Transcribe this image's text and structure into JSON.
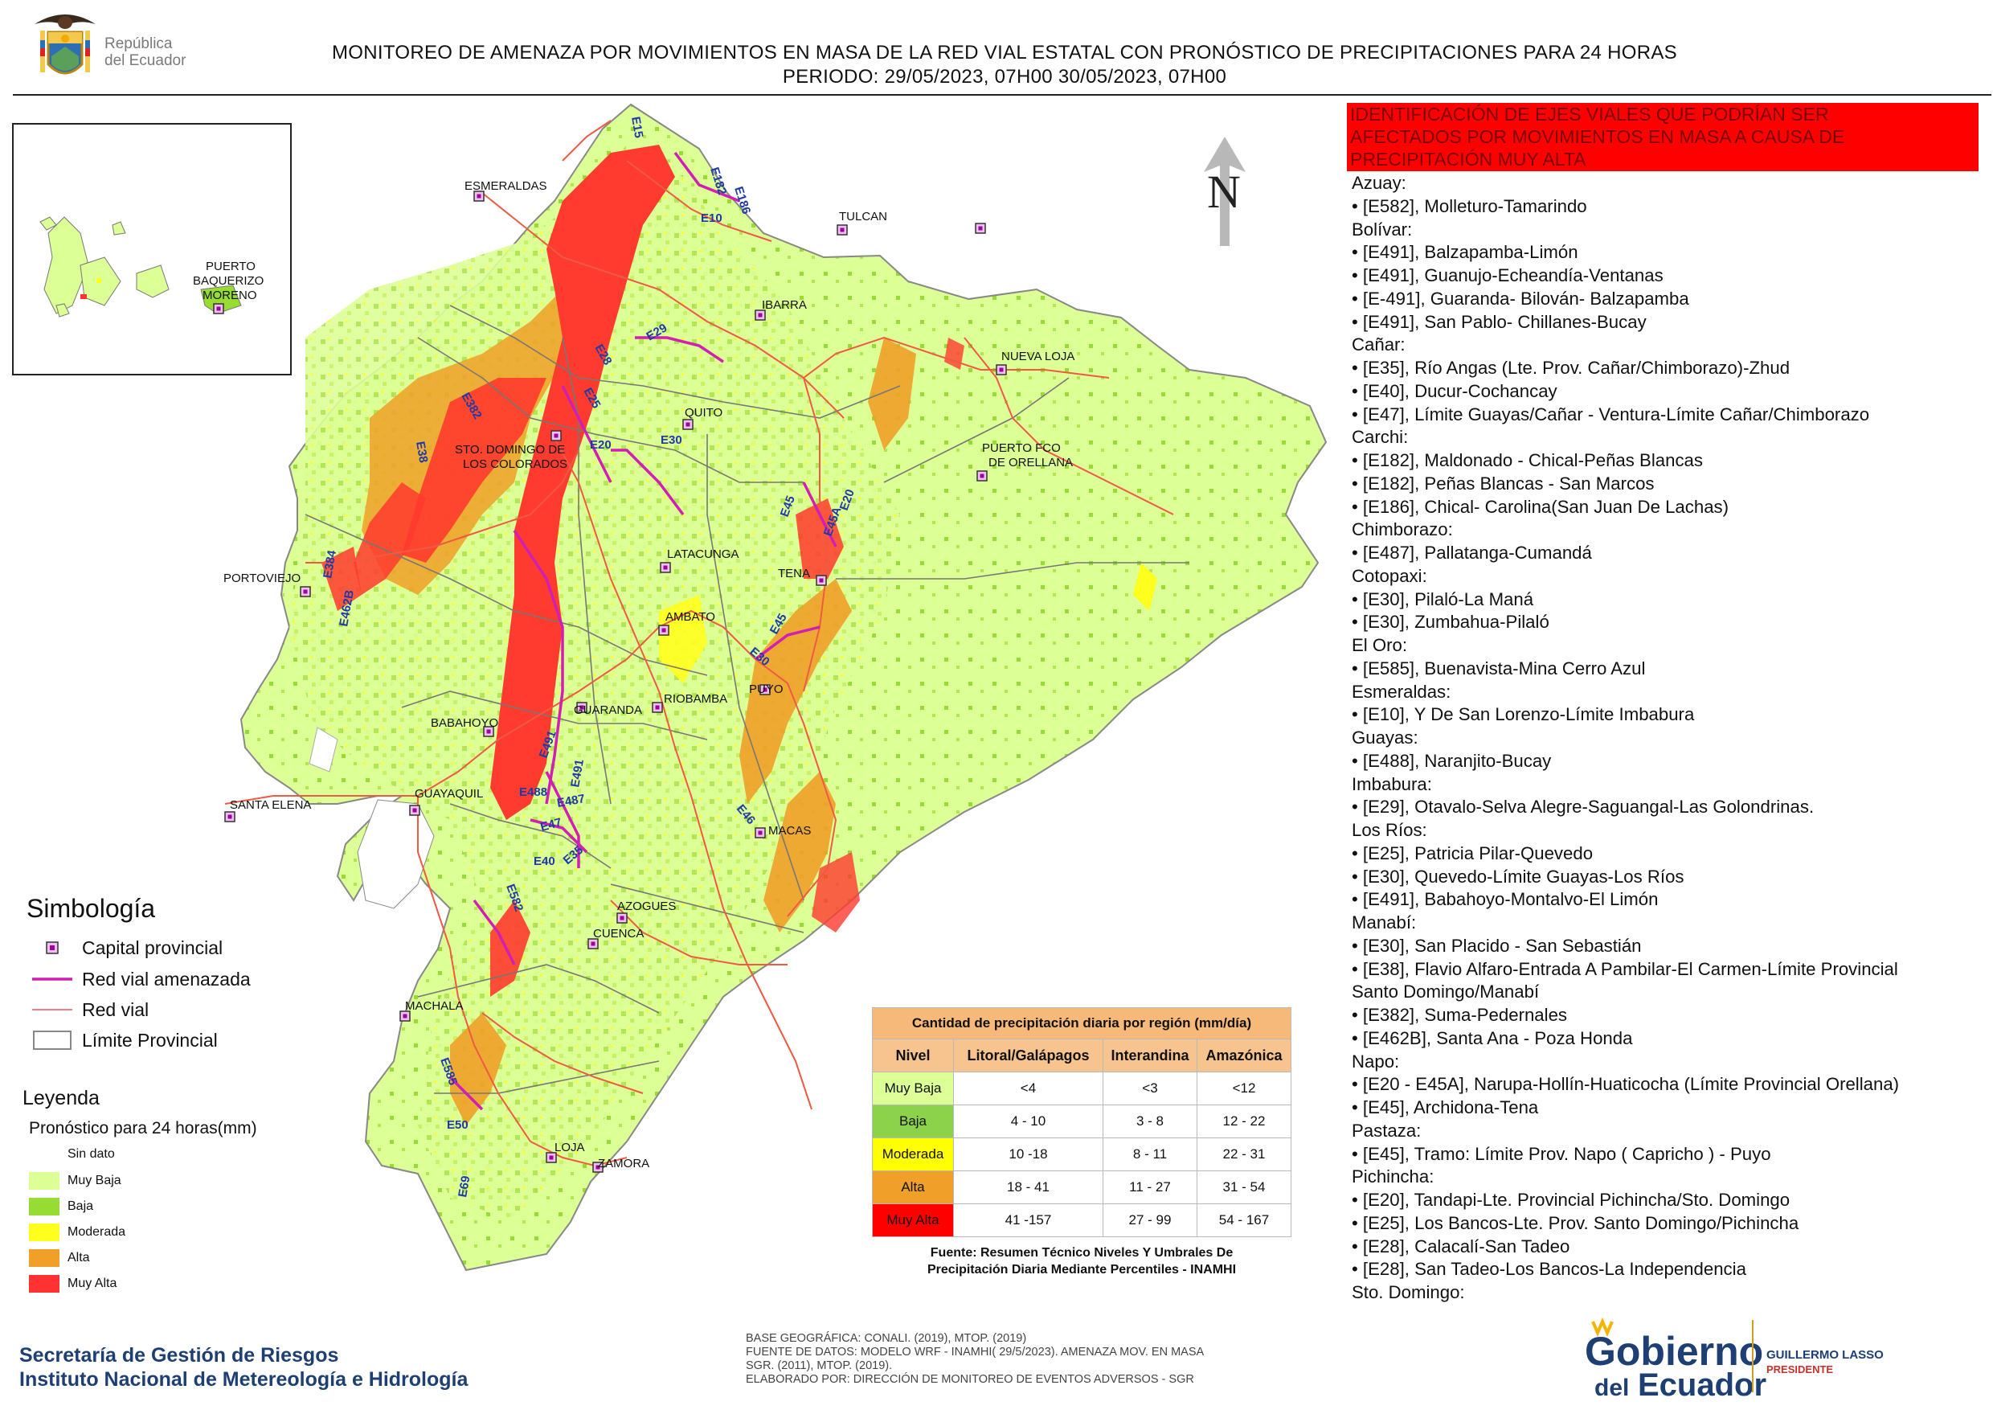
{
  "header": {
    "republic_name_line1": "República",
    "republic_name_line2": "del Ecuador",
    "title_line1": "MONITOREO DE AMENAZA POR MOVIMIENTOS EN MASA DE LA RED VIAL  ESTATAL  CON PRONÓSTICO  DE  PRECIPITACIONES PARA 24 HORAS",
    "title_line2": "PERIODO: 29/05/2023, 07H00 30/05/2023, 07H00"
  },
  "map": {
    "north_label": "N",
    "cities": [
      {
        "name": "ESMERALDAS"
      },
      {
        "name": "TULCAN"
      },
      {
        "name": "IBARRA"
      },
      {
        "name": "NUEVA LOJA"
      },
      {
        "name": "QUITO"
      },
      {
        "name": "STO. DOMINGO DE"
      },
      {
        "name": "LOS COLORADOS"
      },
      {
        "name": "PUERTO FCO"
      },
      {
        "name": "DE ORELLANA"
      },
      {
        "name": "PORTOVIEJO"
      },
      {
        "name": "LATACUNGA"
      },
      {
        "name": "TENA"
      },
      {
        "name": "AMBATO"
      },
      {
        "name": "GUARANDA"
      },
      {
        "name": "RIOBAMBA"
      },
      {
        "name": "PUYO"
      },
      {
        "name": "BABAHOYO"
      },
      {
        "name": "SANTA ELENA"
      },
      {
        "name": "GUAYAQUIL"
      },
      {
        "name": "MACAS"
      },
      {
        "name": "AZOGUES"
      },
      {
        "name": "CUENCA"
      },
      {
        "name": "MACHALA"
      },
      {
        "name": "LOJA"
      },
      {
        "name": "ZAMORA"
      }
    ],
    "inset_cities": [
      {
        "name": "PUERTO"
      },
      {
        "name": "BAQUERIZO"
      },
      {
        "name": "MORENO"
      }
    ],
    "roads": [
      "E15",
      "E182",
      "E186",
      "E10",
      "E29",
      "E28",
      "E25",
      "E382",
      "E20",
      "E30",
      "E38",
      "E384",
      "E462B",
      "E45",
      "E20",
      "E45A",
      "E45",
      "E30",
      "E491",
      "E491",
      "E488",
      "E487",
      "E47",
      "E40",
      "E35",
      "E46",
      "E582",
      "E585",
      "E50",
      "E69",
      "E28",
      "E30"
    ]
  },
  "symbology": {
    "title": "Simbología",
    "items": [
      {
        "label": "Capital provincial",
        "icon": "capital-icon"
      },
      {
        "label": "Red vial amenazada",
        "color": "#d11fb4"
      },
      {
        "label": "Red vial",
        "color": "#f08080"
      },
      {
        "label": "Límite Provincial",
        "color": "#888888"
      }
    ]
  },
  "legend": {
    "title": "Leyenda",
    "subtitle": "Pronóstico para 24 horas(mm)",
    "items": [
      {
        "label": "Sin dato",
        "color": "#ffffff"
      },
      {
        "label": "Muy Baja",
        "color": "#dcff96"
      },
      {
        "label": "Baja",
        "color": "#96dc32"
      },
      {
        "label": "Moderada",
        "color": "#ffff1e"
      },
      {
        "label": "Alta",
        "color": "#f0a028"
      },
      {
        "label": "Muy Alta",
        "color": "#ff3232"
      }
    ]
  },
  "precip_table": {
    "caption": "Cantidad de precipitación diaria por región (mm/día)",
    "headers": [
      "Nivel",
      "Litoral/Galápagos",
      "Interandina",
      "Amazónica"
    ],
    "rows": [
      {
        "level": "Muy Baja",
        "color": "#dcff96",
        "litoral": "<4",
        "interandina": "<3",
        "amazonica": "<12"
      },
      {
        "level": "Baja",
        "color": "#8cd24b",
        "litoral": "4 - 10",
        "interandina": "3 - 8",
        "amazonica": "12 - 22"
      },
      {
        "level": "Moderada",
        "color": "#ffff00",
        "litoral": "10 -18",
        "interandina": "8 - 11",
        "amazonica": "22 - 31"
      },
      {
        "level": "Alta",
        "color": "#f0a028",
        "litoral": "18 - 41",
        "interandina": "11 - 27",
        "amazonica": "31 - 54"
      },
      {
        "level": "Muy Alta",
        "color": "#ff0000",
        "litoral": "41 -157",
        "interandina": "27 - 99",
        "amazonica": "54 - 167"
      }
    ],
    "source_line1": "Fuente: Resumen Técnico Niveles Y Umbrales De",
    "source_line2": "Precipitación Diaria Mediante Percentiles - INAMHI"
  },
  "credits": {
    "line1": "BASE GEOGRÁFICA: CONALI. (2019), MTOP. (2019)",
    "line2": "FUENTE DE DATOS: MODELO WRF - INAMHI( 29/5/2023).  AMENAZA MOV. EN MASA",
    "line3": "SGR. (2011), MTOP. (2019).",
    "line4": "ELABORADO POR: DIRECCIÓN DE MONITOREO DE EVENTOS ADVERSOS - SGR"
  },
  "institutions": {
    "line1": "Secretaría de Gestión de Riesgos",
    "line2": "Instituto Nacional de Metereología e Hidrología"
  },
  "alert": {
    "line1": "IDENTIFICACIÓN DE EJES VIALES QUE PODRÍAN SER",
    "line2": "AFECTADOS POR MOVIMIENTOS EN MASA A CAUSA DE",
    "line3": "PRECIPITACIÓN MUY ALTA"
  },
  "road_list": [
    {
      "type": "province",
      "text": "Azuay:"
    },
    {
      "type": "item",
      "text": "• [E582], Molleturo-Tamarindo"
    },
    {
      "type": "province",
      "text": "Bolívar:"
    },
    {
      "type": "item",
      "text": "• [E491], Balzapamba-Limón"
    },
    {
      "type": "item",
      "text": "• [E491], Guanujo-Echeandía-Ventanas"
    },
    {
      "type": "item",
      "text": "• [E-491], Guaranda- Bilován- Balzapamba"
    },
    {
      "type": "item",
      "text": "• [E491], San Pablo- Chillanes-Bucay"
    },
    {
      "type": "province",
      "text": "Cañar:"
    },
    {
      "type": "item",
      "text": "• [E35], Río Angas (Lte. Prov. Cañar/Chimborazo)-Zhud"
    },
    {
      "type": "item",
      "text": "• [E40], Ducur-Cochancay"
    },
    {
      "type": "item",
      "text": "• [E47], Límite Guayas/Cañar - Ventura-Límite Cañar/Chimborazo"
    },
    {
      "type": "province",
      "text": "Carchi:"
    },
    {
      "type": "item",
      "text": "• [E182], Maldonado - Chical-Peñas Blancas"
    },
    {
      "type": "item",
      "text": "• [E182], Peñas Blancas - San Marcos"
    },
    {
      "type": "item",
      "text": "• [E186], Chical- Carolina(San Juan De Lachas)"
    },
    {
      "type": "province",
      "text": "Chimborazo:"
    },
    {
      "type": "item",
      "text": "• [E487], Pallatanga-Cumandá"
    },
    {
      "type": "province",
      "text": "Cotopaxi:"
    },
    {
      "type": "item",
      "text": "• [E30], Pilaló-La Maná"
    },
    {
      "type": "item",
      "text": "• [E30], Zumbahua-Pilaló"
    },
    {
      "type": "province",
      "text": "El Oro:"
    },
    {
      "type": "item",
      "text": "• [E585], Buenavista-Mina Cerro Azul"
    },
    {
      "type": "province",
      "text": "Esmeraldas:"
    },
    {
      "type": "item",
      "text": "• [E10], Y De San Lorenzo-Límite Imbabura"
    },
    {
      "type": "province",
      "text": "Guayas:"
    },
    {
      "type": "item",
      "text": "• [E488], Naranjito-Bucay"
    },
    {
      "type": "province",
      "text": "Imbabura:"
    },
    {
      "type": "item",
      "text": "• [E29], Otavalo-Selva Alegre-Saguangal-Las Golondrinas."
    },
    {
      "type": "province",
      "text": "Los Ríos:"
    },
    {
      "type": "item",
      "text": "• [E25], Patricia Pilar-Quevedo"
    },
    {
      "type": "item",
      "text": "• [E30], Quevedo-Límite Guayas-Los Ríos"
    },
    {
      "type": "item",
      "text": "• [E491], Babahoyo-Montalvo-El Limón"
    },
    {
      "type": "province",
      "text": "Manabí:"
    },
    {
      "type": "item",
      "text": "• [E30], San Placido - San Sebastián"
    },
    {
      "type": "item",
      "text": "• [E38], Flavio Alfaro-Entrada A Pambilar-El Carmen-Límite Provincial"
    },
    {
      "type": "province",
      "text": "Santo Domingo/Manabí"
    },
    {
      "type": "item",
      "text": "• [E382], Suma-Pedernales"
    },
    {
      "type": "item",
      "text": "• [E462B], Santa Ana - Poza Honda"
    },
    {
      "type": "province",
      "text": "Napo:"
    },
    {
      "type": "item",
      "text": "• [E20 - E45A], Narupa-Hollín-Huaticocha (Límite Provincial Orellana)"
    },
    {
      "type": "item",
      "text": "• [E45], Archidona-Tena"
    },
    {
      "type": "province",
      "text": "Pastaza:"
    },
    {
      "type": "item",
      "text": "• [E45], Tramo: Límite Prov. Napo ( Capricho ) - Puyo"
    },
    {
      "type": "province",
      "text": "Pichincha:"
    },
    {
      "type": "item",
      "text": "• [E20], Tandapi-Lte. Provincial Pichincha/Sto. Domingo"
    },
    {
      "type": "item",
      "text": "• [E25], Los Bancos-Lte. Prov. Santo Domingo/Pichincha"
    },
    {
      "type": "item",
      "text": "• [E28], Calacalí-San Tadeo"
    },
    {
      "type": "item",
      "text": "• [E28], San Tadeo-Los Bancos-La Independencia"
    },
    {
      "type": "province",
      "text": "Sto. Domingo:"
    }
  ],
  "gobierno": {
    "line1": "Gobierno",
    "line2": "del",
    "line3": "Ecuador",
    "president_name": "GUILLERMO LASSO",
    "president_title": "PRESIDENTE"
  }
}
